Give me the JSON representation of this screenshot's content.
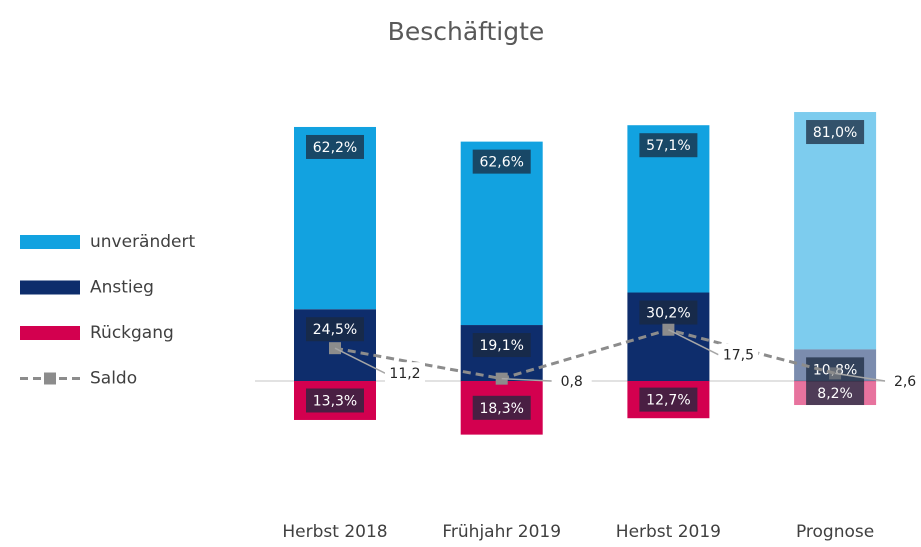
{
  "chart_data": {
    "type": "bar",
    "title": "Beschäftigte",
    "categories": [
      "Herbst 2018",
      "Frühjahr 2019",
      "Herbst 2019",
      "Prognose"
    ],
    "series": [
      {
        "name": "unverändert",
        "color": "#12a2e0",
        "values": [
          62.2,
          62.6,
          57.1,
          81.0
        ],
        "value_labels": [
          "62,2%",
          "62,6%",
          "57,1%",
          "81,0%"
        ]
      },
      {
        "name": "Anstieg",
        "color": "#0e2d6c",
        "values": [
          24.5,
          19.1,
          30.2,
          10.8
        ],
        "value_labels": [
          "24,5%",
          "19,1%",
          "30,2%",
          "10,8%"
        ]
      },
      {
        "name": "Rückgang",
        "color": "#d3004f",
        "values": [
          -13.3,
          -18.3,
          -12.7,
          -8.2
        ],
        "value_labels": [
          "13,3%",
          "18,3%",
          "12,7%",
          "8,2%"
        ]
      },
      {
        "name": "Saldo",
        "color": "#8c8c8c",
        "type": "line",
        "values": [
          11.2,
          0.8,
          17.5,
          2.6
        ],
        "value_labels": [
          "11,2",
          "0,8",
          "17,5",
          "2,6"
        ]
      }
    ]
  }
}
